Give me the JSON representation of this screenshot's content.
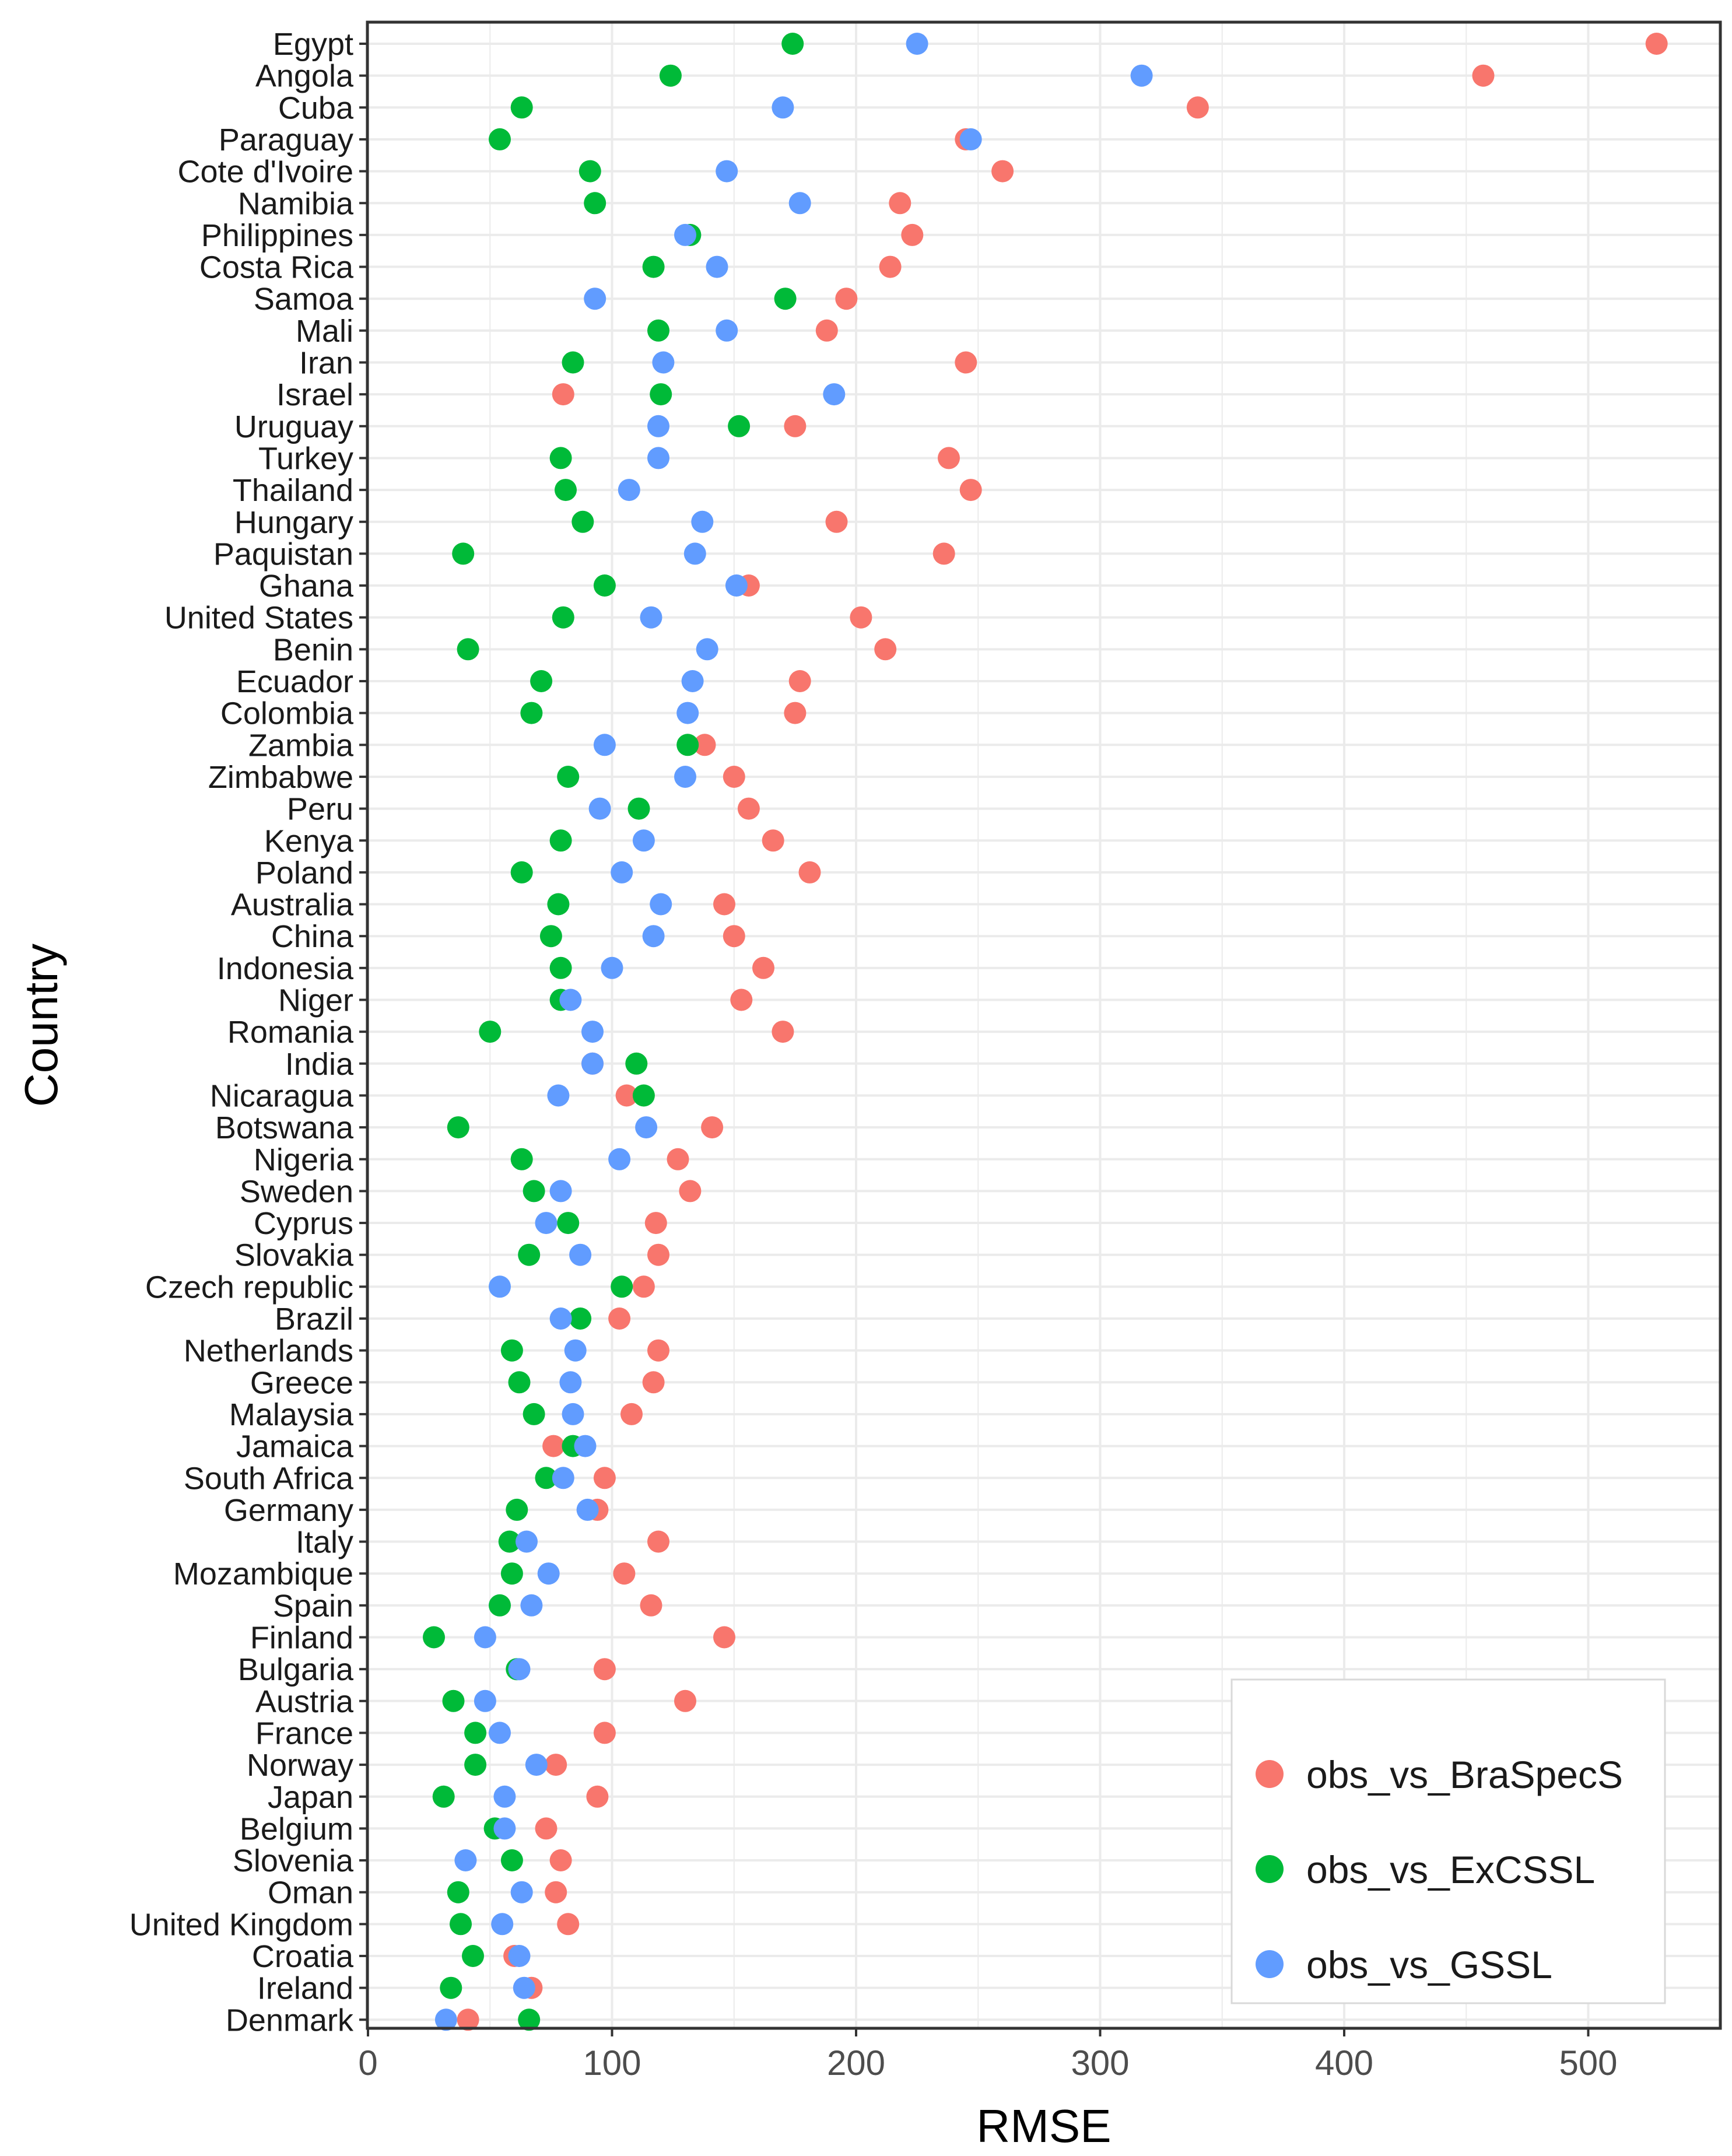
{
  "colors": {
    "obs_vs_BraSpecS": "#F8766D",
    "obs_vs_ExCSSL": "#00BA38",
    "obs_vs_GSSL": "#619CFF",
    "grid": "#EBEBEB",
    "panel_border": "#333333"
  },
  "chart_data": {
    "type": "scatter",
    "title": "",
    "xlabel": "RMSE",
    "ylabel": "Country",
    "xlim": [
      0,
      550
    ],
    "xticks": [
      0,
      100,
      200,
      300,
      400,
      500
    ],
    "grid": true,
    "legend_position": "bottom-right",
    "categories": [
      "Egypt",
      "Angola",
      "Cuba",
      "Paraguay",
      "Cote d'Ivoire",
      "Namibia",
      "Philippines",
      "Costa Rica",
      "Samoa",
      "Mali",
      "Iran",
      "Israel",
      "Uruguay",
      "Turkey",
      "Thailand",
      "Hungary",
      "Paquistan",
      "Ghana",
      "United States",
      "Benin",
      "Ecuador",
      "Colombia",
      "Zambia",
      "Zimbabwe",
      "Peru",
      "Kenya",
      "Poland",
      "Australia",
      "China",
      "Indonesia",
      "Niger",
      "Romania",
      "India",
      "Nicaragua",
      "Botswana",
      "Nigeria",
      "Sweden",
      "Cyprus",
      "Slovakia",
      "Czech republic",
      "Brazil",
      "Netherlands",
      "Greece",
      "Malaysia",
      "Jamaica",
      "South Africa",
      "Germany",
      "Italy",
      "Mozambique",
      "Spain",
      "Finland",
      "Bulgaria",
      "Austria",
      "France",
      "Norway",
      "Japan",
      "Belgium",
      "Slovenia",
      "Oman",
      "United Kingdom",
      "Croatia",
      "Ireland",
      "Denmark"
    ],
    "series": [
      {
        "name": "obs_vs_BraSpecS",
        "values": [
          528,
          457,
          340,
          245,
          260,
          218,
          223,
          214,
          196,
          188,
          245,
          80,
          175,
          238,
          247,
          192,
          236,
          156,
          202,
          212,
          177,
          175,
          138,
          150,
          156,
          166,
          181,
          146,
          150,
          162,
          153,
          170,
          92,
          106,
          141,
          127,
          132,
          118,
          119,
          113,
          103,
          119,
          117,
          108,
          76,
          97,
          94,
          119,
          105,
          116,
          146,
          97,
          130,
          97,
          77,
          94,
          73,
          79,
          77,
          82,
          60,
          67,
          41
        ],
        "plot_order": [
          0,
          1,
          2,
          4,
          5,
          6,
          7,
          8,
          9,
          10,
          11,
          12,
          13,
          14,
          15,
          16,
          17,
          18,
          19,
          20,
          21,
          22,
          23,
          24,
          25,
          26,
          27,
          28,
          29,
          30,
          31,
          33,
          34,
          35,
          36,
          37,
          38,
          39,
          40,
          41,
          42,
          43,
          44,
          45,
          46,
          47,
          48,
          49,
          50,
          51,
          52,
          53,
          54,
          55,
          56,
          57,
          58,
          59,
          60,
          61,
          62,
          3,
          32
        ]
      },
      {
        "name": "obs_vs_ExCSSL",
        "values": [
          174,
          124,
          63,
          54,
          91,
          93,
          132,
          117,
          171,
          119,
          84,
          120,
          152,
          79,
          81,
          88,
          39,
          97,
          80,
          41,
          71,
          67,
          131,
          82,
          111,
          79,
          63,
          78,
          75,
          79,
          79,
          50,
          110,
          113,
          37,
          63,
          68,
          82,
          66,
          104,
          87,
          59,
          62,
          68,
          84,
          73,
          61,
          58,
          59,
          54,
          27,
          61,
          35,
          44,
          44,
          31,
          52,
          59,
          37,
          38,
          43,
          34,
          66
        ],
        "plot_order": [
          0,
          1,
          2,
          3,
          4,
          5,
          7,
          8,
          9,
          10,
          11,
          12,
          13,
          14,
          15,
          16,
          17,
          18,
          19,
          20,
          21,
          23,
          24,
          25,
          26,
          27,
          28,
          29,
          30,
          31,
          32,
          33,
          34,
          35,
          36,
          37,
          38,
          39,
          41,
          42,
          43,
          45,
          46,
          47,
          48,
          49,
          50,
          51,
          52,
          53,
          54,
          55,
          56,
          57,
          58,
          59,
          60,
          61,
          62,
          6,
          22,
          40,
          44
        ]
      },
      {
        "name": "obs_vs_GSSL",
        "values": [
          225,
          317,
          170,
          247,
          147,
          177,
          130,
          143,
          93,
          147,
          121,
          191,
          119,
          119,
          107,
          137,
          134,
          151,
          116,
          139,
          133,
          131,
          97,
          130,
          95,
          113,
          104,
          120,
          117,
          100,
          83,
          92,
          92,
          78,
          114,
          103,
          79,
          73,
          87,
          54,
          79,
          85,
          83,
          84,
          89,
          80,
          90,
          65,
          74,
          67,
          48,
          62,
          48,
          54,
          69,
          56,
          56,
          40,
          63,
          55,
          62,
          64,
          32
        ],
        "plot_order": [
          0,
          1,
          2,
          3,
          4,
          5,
          6,
          7,
          8,
          9,
          10,
          11,
          12,
          13,
          14,
          15,
          16,
          17,
          18,
          19,
          20,
          21,
          22,
          23,
          24,
          25,
          26,
          27,
          28,
          29,
          30,
          31,
          32,
          33,
          34,
          35,
          36,
          37,
          38,
          39,
          40,
          41,
          42,
          43,
          44,
          45,
          46,
          47,
          48,
          49,
          50,
          51,
          52,
          53,
          54,
          55,
          56,
          57,
          58,
          59,
          60,
          61,
          62
        ]
      }
    ]
  }
}
